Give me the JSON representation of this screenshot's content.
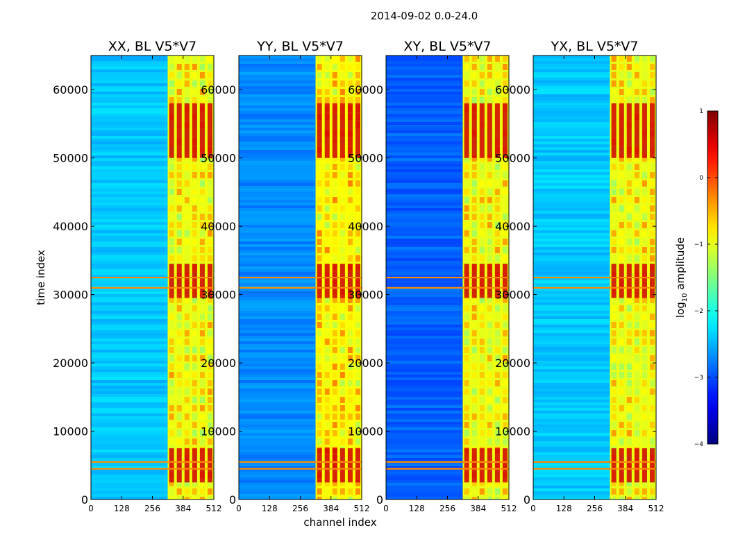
{
  "chart_data": {
    "type": "heatmap",
    "suptitle": "2014-09-02 0.0-24.0",
    "xlabel": "channel index",
    "ylabel": "time index",
    "xlim": [
      0,
      512
    ],
    "ylim": [
      0,
      65000
    ],
    "xticks": [
      "0",
      "128",
      "256",
      "384",
      "512"
    ],
    "yticks": [
      "0",
      "10000",
      "20000",
      "30000",
      "40000",
      "50000",
      "60000"
    ],
    "colorbar": {
      "label_main": "log",
      "label_sub": "10",
      "label_tail": " amplitude",
      "range": [
        -4,
        1
      ],
      "ticks": [
        "1",
        "0",
        "−1",
        "−2",
        "−3",
        "−4"
      ],
      "colormap": "jet"
    },
    "rfi_band_channels": [
      320,
      512
    ],
    "horizontal_rfi_rows": [
      4500,
      5500,
      31000,
      32500
    ],
    "panels": [
      {
        "title": "XX, BL V5*V7",
        "background_level": -2.4,
        "band_level": -1.0
      },
      {
        "title": "YY, BL V5*V7",
        "background_level": -2.7,
        "band_level": -0.9
      },
      {
        "title": "XY, BL V5*V7",
        "background_level": -2.9,
        "band_level": -1.0
      },
      {
        "title": "YX, BL V5*V7",
        "background_level": -2.4,
        "band_level": -1.0
      }
    ]
  }
}
